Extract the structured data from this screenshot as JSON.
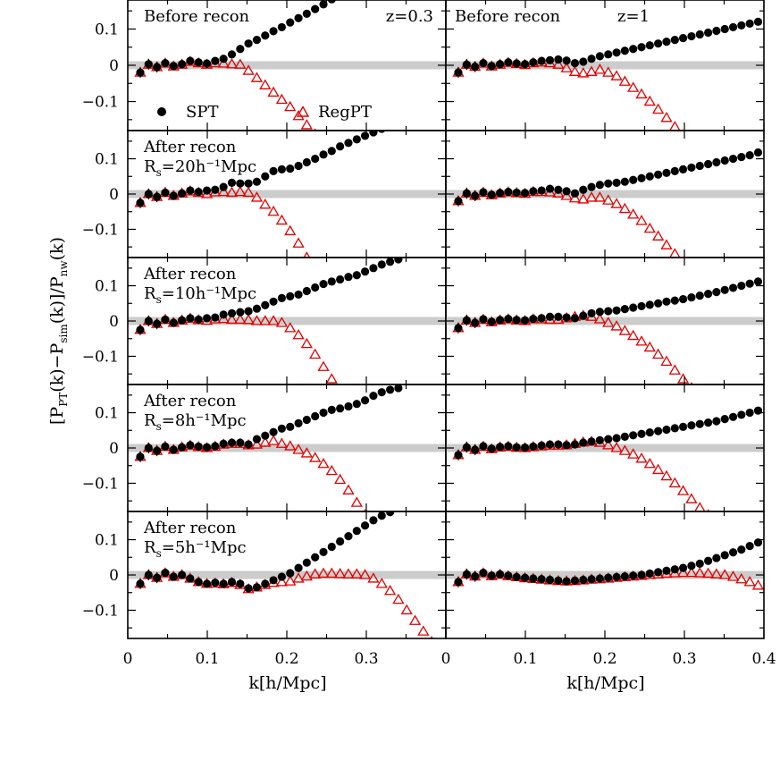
{
  "chart_data": {
    "type": "scatter",
    "ylabel_parts": {
      "open": "[P",
      "pt_sub": "PT",
      "mid": "(k)−P",
      "sim_sub": "sim",
      "mid2": "(k)]/P",
      "nw_sub": "nw",
      "close": "(k)"
    },
    "xlabel": "k[h/Mpc]",
    "xlim": [
      0,
      0.4
    ],
    "ylim": [
      -0.18,
      0.18
    ],
    "x_ticks": [
      "0",
      "0.1",
      "0.2",
      "0.3",
      "0.4"
    ],
    "x_ticks_left": [
      "0",
      "0.1",
      "0.2",
      "0.3"
    ],
    "y_ticks": [
      "0.1",
      "0",
      "−0.1"
    ],
    "legend": {
      "spt": "SPT",
      "regpt": "RegPT",
      "spt_color": "#000000",
      "regpt_color": "#e00000"
    },
    "columns": [
      {
        "redshift_label": "z=0.3"
      },
      {
        "redshift_label": "z=1"
      }
    ],
    "rows": [
      {
        "line1": "Before recon",
        "rs_prefix": "",
        "rs_value": ""
      },
      {
        "line1": "After recon",
        "rs_prefix": "R",
        "rs_sub": "s",
        "rs_value": "=20h⁻¹Mpc"
      },
      {
        "line1": "After recon",
        "rs_prefix": "R",
        "rs_sub": "s",
        "rs_value": "=10h⁻¹Mpc"
      },
      {
        "line1": "After recon",
        "rs_prefix": "R",
        "rs_sub": "s",
        "rs_value": "=8h⁻¹Mpc"
      },
      {
        "line1": "After recon",
        "rs_prefix": "R",
        "rs_sub": "s",
        "rs_value": "=5h⁻¹Mpc"
      }
    ],
    "k": [
      0.0157,
      0.0262,
      0.0367,
      0.0471,
      0.0576,
      0.0681,
      0.0785,
      0.089,
      0.0995,
      0.1099,
      0.1204,
      0.1309,
      0.1414,
      0.1518,
      0.1623,
      0.1728,
      0.1832,
      0.1937,
      0.2042,
      0.2147,
      0.2251,
      0.2356,
      0.2461,
      0.2565,
      0.267,
      0.2775,
      0.288,
      0.2984,
      0.3089,
      0.3194,
      0.3299,
      0.3403,
      0.3508,
      0.3613,
      0.3717,
      0.3822,
      0.3927
    ],
    "panels": [
      {
        "row": 0,
        "col": 0,
        "spt": [
          -0.02,
          0.003,
          -0.005,
          0.006,
          -0.002,
          0.003,
          0.012,
          0.008,
          0.005,
          0.012,
          0.018,
          0.03,
          0.045,
          0.06,
          0.07,
          0.082,
          0.094,
          0.105,
          0.118,
          0.13,
          0.142,
          0.155,
          0.168,
          0.182
        ],
        "regpt": [
          -0.02,
          0.002,
          -0.005,
          0.005,
          -0.003,
          0.002,
          0.01,
          0.006,
          0.002,
          0.006,
          0.005,
          0.003,
          0.002,
          -0.015,
          -0.035,
          -0.055,
          -0.075,
          -0.095,
          -0.115,
          -0.14,
          -0.165,
          -0.19
        ]
      },
      {
        "row": 0,
        "col": 1,
        "spt": [
          -0.02,
          0.002,
          -0.004,
          0.006,
          -0.002,
          0.003,
          0.008,
          0.005,
          0.003,
          0.008,
          0.012,
          0.014,
          0.016,
          0.013,
          0.006,
          0.01,
          0.018,
          0.025,
          0.03,
          0.035,
          0.04,
          0.045,
          0.05,
          0.055,
          0.06,
          0.065,
          0.07,
          0.075,
          0.08,
          0.085,
          0.09,
          0.095,
          0.1,
          0.105,
          0.11,
          0.115,
          0.12
        ],
        "regpt": [
          -0.02,
          0.002,
          -0.004,
          0.005,
          -0.003,
          0.002,
          0.007,
          0.004,
          0.001,
          0.006,
          0.008,
          0.006,
          0.002,
          -0.008,
          -0.018,
          -0.022,
          -0.018,
          -0.012,
          -0.02,
          -0.03,
          -0.045,
          -0.062,
          -0.08,
          -0.1,
          -0.122,
          -0.145,
          -0.17,
          -0.195
        ]
      },
      {
        "row": 1,
        "col": 0,
        "spt": [
          -0.025,
          0.0,
          -0.008,
          0.004,
          -0.005,
          0.002,
          0.01,
          0.006,
          0.01,
          0.012,
          0.02,
          0.032,
          0.03,
          0.03,
          0.035,
          0.05,
          0.065,
          0.07,
          0.072,
          0.08,
          0.09,
          0.1,
          0.112,
          0.122,
          0.135,
          0.145,
          0.155,
          0.165,
          0.175,
          0.185
        ],
        "regpt": [
          -0.025,
          0.0,
          -0.008,
          0.004,
          -0.005,
          0.002,
          0.008,
          0.004,
          0.0,
          0.005,
          0.006,
          0.004,
          0.006,
          0.004,
          -0.01,
          -0.03,
          -0.05,
          -0.075,
          -0.105,
          -0.14,
          -0.18
        ]
      },
      {
        "row": 1,
        "col": 1,
        "spt": [
          -0.02,
          0.002,
          -0.005,
          0.005,
          -0.002,
          0.003,
          0.006,
          0.004,
          0.003,
          0.008,
          0.01,
          0.015,
          0.012,
          0.008,
          0.002,
          0.012,
          0.02,
          0.026,
          0.03,
          0.032,
          0.035,
          0.04,
          0.045,
          0.05,
          0.055,
          0.06,
          0.065,
          0.07,
          0.075,
          0.08,
          0.085,
          0.09,
          0.095,
          0.1,
          0.105,
          0.11,
          0.118
        ],
        "regpt": [
          -0.02,
          0.002,
          -0.005,
          0.004,
          -0.003,
          0.002,
          0.005,
          0.003,
          0.001,
          0.006,
          0.006,
          0.005,
          0.002,
          -0.005,
          -0.012,
          -0.015,
          -0.01,
          -0.01,
          -0.018,
          -0.028,
          -0.042,
          -0.058,
          -0.076,
          -0.098,
          -0.12,
          -0.145,
          -0.17,
          -0.2
        ]
      },
      {
        "row": 2,
        "col": 0,
        "spt": [
          -0.025,
          0.0,
          -0.008,
          0.004,
          -0.005,
          0.002,
          0.008,
          0.004,
          0.008,
          0.01,
          0.018,
          0.022,
          0.025,
          0.028,
          0.035,
          0.045,
          0.055,
          0.065,
          0.07,
          0.075,
          0.085,
          0.095,
          0.105,
          0.112,
          0.118,
          0.125,
          0.13,
          0.14,
          0.15,
          0.16,
          0.168,
          0.175
        ],
        "regpt": [
          -0.025,
          0.0,
          -0.008,
          0.004,
          -0.005,
          0.002,
          0.007,
          0.003,
          0.001,
          0.005,
          0.006,
          0.004,
          0.004,
          0.003,
          0.0,
          0.0,
          0.0,
          -0.005,
          -0.02,
          -0.04,
          -0.065,
          -0.095,
          -0.13,
          -0.165
        ]
      },
      {
        "row": 2,
        "col": 1,
        "spt": [
          -0.02,
          0.002,
          -0.005,
          0.005,
          -0.002,
          0.003,
          0.006,
          0.003,
          0.002,
          0.006,
          0.008,
          0.012,
          0.012,
          0.01,
          0.008,
          0.015,
          0.022,
          0.026,
          0.028,
          0.03,
          0.034,
          0.038,
          0.042,
          0.046,
          0.05,
          0.055,
          0.058,
          0.062,
          0.067,
          0.072,
          0.077,
          0.082,
          0.088,
          0.094,
          0.1,
          0.106,
          0.112
        ],
        "regpt": [
          -0.02,
          0.002,
          -0.005,
          0.004,
          -0.003,
          0.002,
          0.005,
          0.002,
          0.0,
          0.005,
          0.005,
          0.004,
          0.004,
          0.008,
          0.012,
          0.015,
          0.012,
          0.005,
          -0.005,
          -0.015,
          -0.028,
          -0.042,
          -0.058,
          -0.075,
          -0.095,
          -0.115,
          -0.14,
          -0.165,
          -0.19
        ]
      },
      {
        "row": 3,
        "col": 0,
        "spt": [
          -0.025,
          0.0,
          -0.008,
          0.004,
          -0.005,
          0.002,
          0.008,
          0.004,
          0.002,
          0.005,
          0.012,
          0.015,
          0.015,
          0.01,
          0.025,
          0.035,
          0.045,
          0.055,
          0.06,
          0.07,
          0.08,
          0.09,
          0.1,
          0.108,
          0.112,
          0.118,
          0.125,
          0.135,
          0.148,
          0.158,
          0.165,
          0.17
        ],
        "regpt": [
          -0.025,
          0.0,
          -0.008,
          0.004,
          -0.005,
          0.002,
          0.007,
          0.003,
          0.0,
          0.004,
          0.01,
          0.012,
          0.012,
          0.008,
          0.01,
          0.015,
          0.02,
          0.012,
          0.005,
          -0.005,
          -0.015,
          -0.028,
          -0.045,
          -0.065,
          -0.09,
          -0.12,
          -0.155,
          -0.19
        ]
      },
      {
        "row": 3,
        "col": 1,
        "spt": [
          -0.02,
          0.002,
          -0.005,
          0.005,
          -0.002,
          0.003,
          0.005,
          0.002,
          0.001,
          0.004,
          0.007,
          0.01,
          0.01,
          0.008,
          0.01,
          0.015,
          0.018,
          0.022,
          0.025,
          0.028,
          0.032,
          0.036,
          0.04,
          0.044,
          0.048,
          0.052,
          0.056,
          0.06,
          0.064,
          0.068,
          0.072,
          0.076,
          0.082,
          0.088,
          0.094,
          0.1,
          0.106
        ],
        "regpt": [
          -0.02,
          0.002,
          -0.005,
          0.004,
          -0.003,
          0.002,
          0.004,
          0.001,
          0.0,
          0.003,
          0.005,
          0.007,
          0.007,
          0.008,
          0.012,
          0.016,
          0.018,
          0.015,
          0.008,
          0.0,
          -0.008,
          -0.018,
          -0.03,
          -0.045,
          -0.062,
          -0.08,
          -0.1,
          -0.122,
          -0.145,
          -0.17,
          -0.19
        ]
      },
      {
        "row": 4,
        "col": 0,
        "spt": [
          -0.025,
          0.0,
          -0.008,
          0.006,
          -0.005,
          0.0,
          -0.01,
          -0.02,
          -0.025,
          -0.022,
          -0.025,
          -0.02,
          -0.025,
          -0.038,
          -0.035,
          -0.025,
          -0.015,
          -0.005,
          0.005,
          0.02,
          0.035,
          0.05,
          0.065,
          0.08,
          0.095,
          0.11,
          0.125,
          0.14,
          0.155,
          0.168,
          0.178
        ],
        "regpt": [
          -0.025,
          0.0,
          -0.008,
          0.005,
          -0.005,
          0.0,
          -0.01,
          -0.02,
          -0.025,
          -0.024,
          -0.026,
          -0.022,
          -0.028,
          -0.04,
          -0.035,
          -0.028,
          -0.022,
          -0.02,
          -0.018,
          -0.01,
          -0.004,
          0.002,
          0.004,
          0.004,
          0.003,
          0.002,
          0.002,
          0.0,
          -0.01,
          -0.025,
          -0.045,
          -0.07,
          -0.1,
          -0.13,
          -0.16,
          -0.19
        ]
      },
      {
        "row": 4,
        "col": 1,
        "spt": [
          -0.02,
          0.002,
          -0.004,
          0.006,
          -0.002,
          0.002,
          -0.002,
          -0.006,
          -0.008,
          -0.01,
          -0.012,
          -0.014,
          -0.016,
          -0.018,
          -0.016,
          -0.014,
          -0.012,
          -0.01,
          -0.008,
          -0.006,
          -0.004,
          -0.002,
          0.0,
          0.004,
          0.008,
          0.012,
          0.016,
          0.02,
          0.026,
          0.032,
          0.04,
          0.048,
          0.056,
          0.064,
          0.072,
          0.082,
          0.092
        ],
        "regpt": [
          -0.02,
          0.002,
          -0.004,
          0.005,
          -0.003,
          0.001,
          -0.003,
          -0.006,
          -0.009,
          -0.011,
          -0.013,
          -0.015,
          -0.017,
          -0.018,
          -0.017,
          -0.015,
          -0.013,
          -0.012,
          -0.01,
          -0.008,
          -0.006,
          -0.004,
          -0.002,
          0.0,
          0.002,
          0.004,
          0.005,
          0.006,
          0.006,
          0.005,
          0.004,
          0.002,
          0.0,
          -0.005,
          -0.012,
          -0.02,
          -0.03
        ]
      }
    ]
  }
}
